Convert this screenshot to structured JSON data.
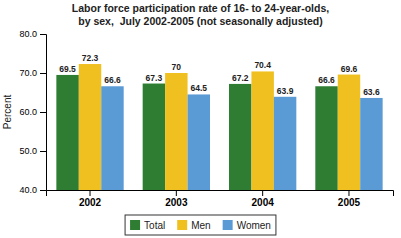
{
  "chart_data": {
    "type": "bar",
    "title": "Labor force participation rate of 16- to 24-year-olds,\nby sex,  July 2002-2005 (not seasonally adjusted)",
    "ylabel": "Percent",
    "categories": [
      "2002",
      "2003",
      "2004",
      "2005"
    ],
    "series": [
      {
        "name": "Total",
        "color": "#2e7d32",
        "values": [
          69.5,
          67.3,
          67.2,
          66.6
        ]
      },
      {
        "name": "Men",
        "color": "#f0c020",
        "values": [
          72.3,
          70.0,
          70.4,
          69.6
        ]
      },
      {
        "name": "Women",
        "color": "#5b9bd5",
        "values": [
          66.6,
          64.5,
          63.9,
          63.6
        ]
      }
    ],
    "ylim": [
      40.0,
      80.0
    ],
    "yticks": [
      {
        "value": 40,
        "label": "40.0"
      },
      {
        "value": 50,
        "label": "50.0"
      },
      {
        "value": 60,
        "label": "60.0"
      },
      {
        "value": 70,
        "label": "70.0"
      },
      {
        "value": 80,
        "label": "80.0"
      }
    ],
    "grid": false,
    "legend": "bottom",
    "data_labels": true
  }
}
